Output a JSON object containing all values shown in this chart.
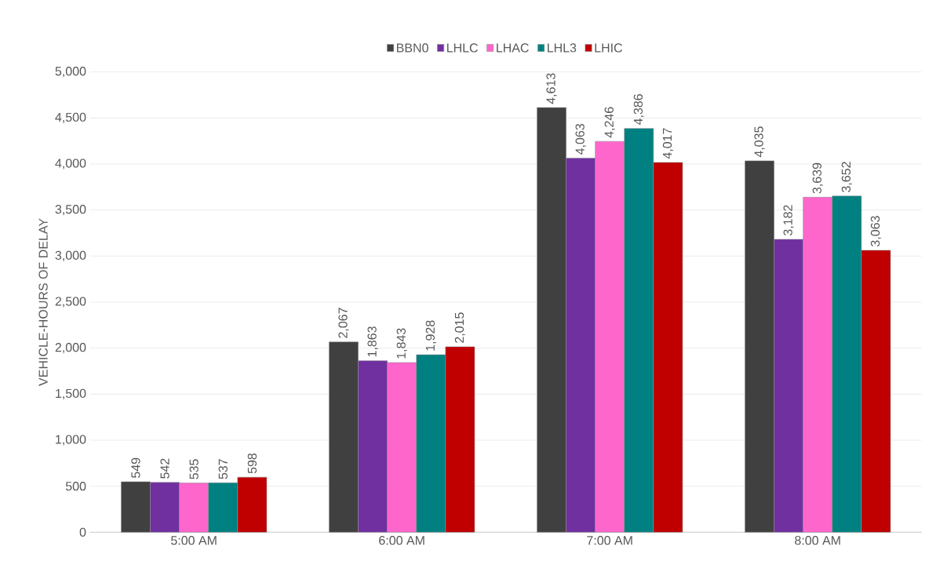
{
  "chart_data": {
    "type": "bar",
    "ylabel": "VEHICLE-HOURS OF DELAY",
    "categories": [
      "5:00 AM",
      "6:00 AM",
      "7:00 AM",
      "8:00 AM"
    ],
    "series": [
      {
        "name": "BBN0",
        "color": "#404040",
        "values": [
          549,
          2067,
          4613,
          4035
        ],
        "value_labels": [
          "549",
          "2,067",
          "4,613",
          "4,035"
        ]
      },
      {
        "name": "LHLC",
        "color": "#7030a0",
        "values": [
          542,
          1863,
          4063,
          3182
        ],
        "value_labels": [
          "542",
          "1,863",
          "4,063",
          "3,182"
        ]
      },
      {
        "name": "LHAC",
        "color": "#ff66cc",
        "values": [
          535,
          1843,
          4246,
          3639
        ],
        "value_labels": [
          "535",
          "1,843",
          "4,246",
          "3,639"
        ]
      },
      {
        "name": "LHL3",
        "color": "#008080",
        "values": [
          537,
          1928,
          4386,
          3652
        ],
        "value_labels": [
          "537",
          "1,928",
          "4,386",
          "3,652"
        ]
      },
      {
        "name": "LHIC",
        "color": "#c00000",
        "values": [
          598,
          2015,
          4017,
          3063
        ],
        "value_labels": [
          "598",
          "2,015",
          "4,017",
          "3,063"
        ]
      }
    ],
    "ylim": [
      0,
      5000
    ],
    "yticks": [
      {
        "value": 0,
        "label": "0"
      },
      {
        "value": 500,
        "label": "500"
      },
      {
        "value": 1000,
        "label": "1,000"
      },
      {
        "value": 1500,
        "label": "1,500"
      },
      {
        "value": 2000,
        "label": "2,000"
      },
      {
        "value": 2500,
        "label": "2,500"
      },
      {
        "value": 3000,
        "label": "3,000"
      },
      {
        "value": 3500,
        "label": "3,500"
      },
      {
        "value": 4000,
        "label": "4,000"
      },
      {
        "value": 4500,
        "label": "4,500"
      },
      {
        "value": 5000,
        "label": "5,000"
      }
    ],
    "grid": "y",
    "legend": "top"
  }
}
